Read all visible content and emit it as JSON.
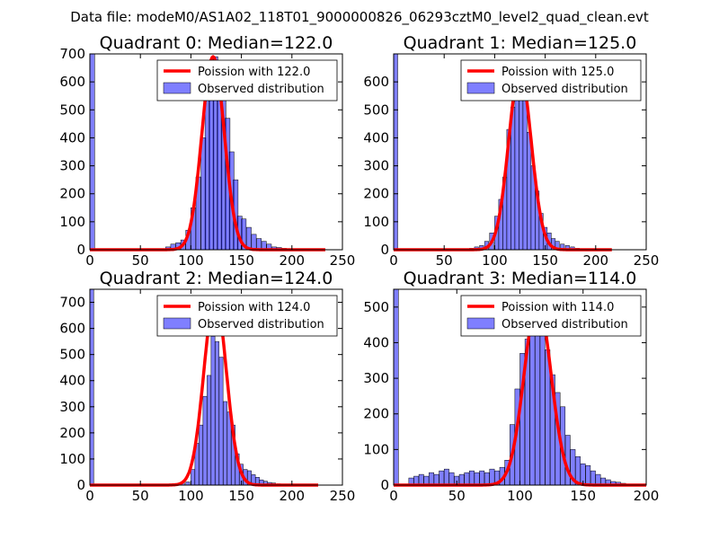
{
  "figure_title": "Data file: modeM0/AS1A02_118T01_9000000826_06293cztM0_level2_quad_clean.evt",
  "colors": {
    "bars": "#0000ff",
    "curve": "#ff0000"
  },
  "chart_data": [
    {
      "type": "bar",
      "title": "Quadrant 0: Median=122.0",
      "xlim": [
        0,
        250
      ],
      "ylim": [
        0,
        700
      ],
      "xticks": [
        0,
        50,
        100,
        150,
        200,
        250
      ],
      "yticks": [
        0,
        100,
        200,
        300,
        400,
        500,
        600,
        700
      ],
      "median": 122.0,
      "poisson_label": "Poission with 122.0",
      "observed_label": "Observed distribution",
      "bin_width": 4.7,
      "bins": [
        {
          "x": 0,
          "y": 700
        },
        {
          "x": 75,
          "y": 10
        },
        {
          "x": 80,
          "y": 20
        },
        {
          "x": 85,
          "y": 25
        },
        {
          "x": 90,
          "y": 35
        },
        {
          "x": 95,
          "y": 70
        },
        {
          "x": 100,
          "y": 150
        },
        {
          "x": 105,
          "y": 260
        },
        {
          "x": 110,
          "y": 400
        },
        {
          "x": 114,
          "y": 550
        },
        {
          "x": 118,
          "y": 620
        },
        {
          "x": 122,
          "y": 690
        },
        {
          "x": 126,
          "y": 600
        },
        {
          "x": 130,
          "y": 540
        },
        {
          "x": 134,
          "y": 470
        },
        {
          "x": 138,
          "y": 350
        },
        {
          "x": 142,
          "y": 250
        },
        {
          "x": 146,
          "y": 120
        },
        {
          "x": 150,
          "y": 110
        },
        {
          "x": 155,
          "y": 80
        },
        {
          "x": 160,
          "y": 55
        },
        {
          "x": 165,
          "y": 40
        },
        {
          "x": 170,
          "y": 30
        },
        {
          "x": 175,
          "y": 20
        },
        {
          "x": 180,
          "y": 10
        },
        {
          "x": 185,
          "y": 8
        },
        {
          "x": 190,
          "y": 5
        },
        {
          "x": 195,
          "y": 3
        },
        {
          "x": 200,
          "y": 2
        },
        {
          "x": 230,
          "y": 1
        }
      ],
      "poisson": {
        "mean": 122.0,
        "peak": 690,
        "xmax": 233
      }
    },
    {
      "type": "bar",
      "title": "Quadrant 1: Median=125.0",
      "xlim": [
        0,
        250
      ],
      "ylim": [
        0,
        700
      ],
      "xticks": [
        0,
        50,
        100,
        150,
        200,
        250
      ],
      "yticks": [
        0,
        100,
        200,
        300,
        400,
        500,
        600
      ],
      "median": 125.0,
      "poisson_label": "Poission with 125.0",
      "observed_label": "Observed distribution",
      "bin_width": 4.0,
      "bins": [
        {
          "x": 0,
          "y": 700
        },
        {
          "x": 75,
          "y": 5
        },
        {
          "x": 80,
          "y": 10
        },
        {
          "x": 85,
          "y": 15
        },
        {
          "x": 90,
          "y": 30
        },
        {
          "x": 95,
          "y": 60
        },
        {
          "x": 100,
          "y": 120
        },
        {
          "x": 104,
          "y": 180
        },
        {
          "x": 108,
          "y": 260
        },
        {
          "x": 112,
          "y": 430
        },
        {
          "x": 116,
          "y": 510
        },
        {
          "x": 120,
          "y": 560
        },
        {
          "x": 124,
          "y": 640
        },
        {
          "x": 128,
          "y": 580
        },
        {
          "x": 132,
          "y": 420
        },
        {
          "x": 136,
          "y": 300
        },
        {
          "x": 140,
          "y": 210
        },
        {
          "x": 144,
          "y": 130
        },
        {
          "x": 148,
          "y": 80
        },
        {
          "x": 152,
          "y": 60
        },
        {
          "x": 156,
          "y": 40
        },
        {
          "x": 160,
          "y": 30
        },
        {
          "x": 165,
          "y": 20
        },
        {
          "x": 170,
          "y": 15
        },
        {
          "x": 175,
          "y": 10
        },
        {
          "x": 180,
          "y": 5
        },
        {
          "x": 190,
          "y": 3
        },
        {
          "x": 210,
          "y": 1
        }
      ],
      "poisson": {
        "mean": 125.0,
        "peak": 640,
        "xmax": 216
      }
    },
    {
      "type": "bar",
      "title": "Quadrant 2: Median=124.0",
      "xlim": [
        0,
        250
      ],
      "ylim": [
        0,
        750
      ],
      "xticks": [
        0,
        50,
        100,
        150,
        200,
        250
      ],
      "yticks": [
        0,
        100,
        200,
        300,
        400,
        500,
        600,
        700
      ],
      "median": 124.0,
      "poisson_label": "Poission with 124.0",
      "observed_label": "Observed distribution",
      "bin_width": 3.8,
      "bins": [
        {
          "x": 0,
          "y": 750
        },
        {
          "x": 80,
          "y": 3
        },
        {
          "x": 85,
          "y": 5
        },
        {
          "x": 90,
          "y": 8
        },
        {
          "x": 95,
          "y": 12
        },
        {
          "x": 100,
          "y": 60
        },
        {
          "x": 104,
          "y": 160
        },
        {
          "x": 108,
          "y": 230
        },
        {
          "x": 112,
          "y": 340
        },
        {
          "x": 116,
          "y": 420
        },
        {
          "x": 120,
          "y": 570
        },
        {
          "x": 124,
          "y": 550
        },
        {
          "x": 128,
          "y": 490
        },
        {
          "x": 132,
          "y": 320
        },
        {
          "x": 136,
          "y": 280
        },
        {
          "x": 140,
          "y": 230
        },
        {
          "x": 144,
          "y": 120
        },
        {
          "x": 148,
          "y": 80
        },
        {
          "x": 152,
          "y": 60
        },
        {
          "x": 156,
          "y": 55
        },
        {
          "x": 160,
          "y": 40
        },
        {
          "x": 164,
          "y": 30
        },
        {
          "x": 168,
          "y": 20
        },
        {
          "x": 172,
          "y": 15
        },
        {
          "x": 176,
          "y": 10
        },
        {
          "x": 180,
          "y": 8
        },
        {
          "x": 185,
          "y": 5
        },
        {
          "x": 195,
          "y": 2
        }
      ],
      "poisson": {
        "mean": 124.0,
        "peak": 720,
        "xmax": 226
      }
    },
    {
      "type": "bar",
      "title": "Quadrant 3: Median=114.0",
      "xlim": [
        0,
        200
      ],
      "ylim": [
        0,
        550
      ],
      "xticks": [
        0,
        50,
        100,
        150,
        200
      ],
      "yticks": [
        0,
        100,
        200,
        300,
        400,
        500
      ],
      "median": 114.0,
      "poisson_label": "Poission with 114.0",
      "observed_label": "Observed distribution",
      "bin_width": 3.8,
      "bins": [
        {
          "x": 0,
          "y": 550
        },
        {
          "x": 12,
          "y": 20
        },
        {
          "x": 16,
          "y": 25
        },
        {
          "x": 20,
          "y": 30
        },
        {
          "x": 24,
          "y": 25
        },
        {
          "x": 28,
          "y": 35
        },
        {
          "x": 32,
          "y": 30
        },
        {
          "x": 36,
          "y": 40
        },
        {
          "x": 40,
          "y": 45
        },
        {
          "x": 44,
          "y": 35
        },
        {
          "x": 48,
          "y": 25
        },
        {
          "x": 52,
          "y": 30
        },
        {
          "x": 56,
          "y": 35
        },
        {
          "x": 60,
          "y": 40
        },
        {
          "x": 64,
          "y": 35
        },
        {
          "x": 68,
          "y": 40
        },
        {
          "x": 72,
          "y": 35
        },
        {
          "x": 76,
          "y": 45
        },
        {
          "x": 80,
          "y": 40
        },
        {
          "x": 84,
          "y": 50
        },
        {
          "x": 88,
          "y": 70
        },
        {
          "x": 92,
          "y": 170
        },
        {
          "x": 96,
          "y": 270
        },
        {
          "x": 100,
          "y": 370
        },
        {
          "x": 104,
          "y": 410
        },
        {
          "x": 108,
          "y": 500
        },
        {
          "x": 112,
          "y": 480
        },
        {
          "x": 116,
          "y": 420
        },
        {
          "x": 120,
          "y": 380
        },
        {
          "x": 124,
          "y": 310
        },
        {
          "x": 128,
          "y": 260
        },
        {
          "x": 132,
          "y": 220
        },
        {
          "x": 136,
          "y": 140
        },
        {
          "x": 140,
          "y": 100
        },
        {
          "x": 144,
          "y": 80
        },
        {
          "x": 148,
          "y": 60
        },
        {
          "x": 152,
          "y": 55
        },
        {
          "x": 156,
          "y": 40
        },
        {
          "x": 160,
          "y": 30
        },
        {
          "x": 164,
          "y": 20
        },
        {
          "x": 168,
          "y": 15
        },
        {
          "x": 172,
          "y": 10
        },
        {
          "x": 176,
          "y": 8
        },
        {
          "x": 180,
          "y": 5
        }
      ],
      "poisson": {
        "mean": 114.0,
        "peak": 515,
        "xmax": 200
      }
    }
  ]
}
